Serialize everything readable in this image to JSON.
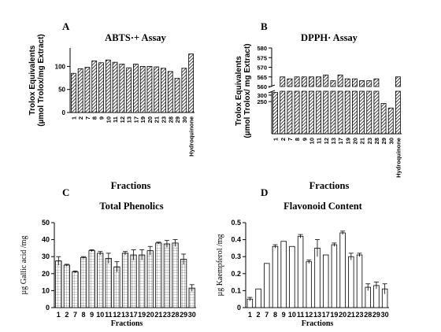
{
  "chart_data": [
    {
      "panel": "A",
      "type": "bar",
      "title": "ABTS·+ Assay",
      "ylabel": "Trolox Equivalents",
      "ylabel2": "(µmol Trolox/mg Extract)",
      "xlabel": "Fractions",
      "categories": [
        "1",
        "2",
        "7",
        "8",
        "9",
        "10",
        "11",
        "12",
        "13",
        "17",
        "19",
        "20",
        "21",
        "23",
        "28",
        "29",
        "30",
        "Hydroquinone"
      ],
      "values": [
        85,
        95,
        98,
        112,
        108,
        114,
        109,
        105,
        97,
        105,
        100,
        100,
        99,
        96,
        89,
        74,
        96,
        127
      ],
      "yticks": [
        0,
        50,
        100
      ],
      "ylim": [
        0,
        140
      ],
      "fill": "hatched"
    },
    {
      "panel": "B",
      "type": "bar",
      "title": "DPPH· Assay",
      "ylabel": "Trolox Equivalents",
      "ylabel2": "(µmol Trolox/ mg Extract)",
      "xlabel": "Fractions",
      "categories": [
        "1",
        "2",
        "7",
        "8",
        "9",
        "10",
        "11",
        "12",
        "13",
        "17",
        "19",
        "20",
        "21",
        "23",
        "28",
        "29",
        "30",
        "Hydroquinone"
      ],
      "values": [
        320,
        565,
        564,
        565,
        565,
        565,
        565,
        566,
        563,
        566,
        564,
        564,
        563,
        563,
        564,
        235,
        200,
        565
      ],
      "yticks": [
        250,
        300,
        560,
        565,
        570,
        575,
        580
      ],
      "axis_break": [
        330,
        560
      ],
      "fill": "hatched"
    },
    {
      "panel": "C",
      "type": "bar",
      "title": "Total Phenolics",
      "ylabel": "µg Gallic acid /mg",
      "xlabel": "Fractions",
      "categories": [
        "1",
        "2",
        "7",
        "8",
        "9",
        "10",
        "11",
        "12",
        "13",
        "17",
        "19",
        "20",
        "21",
        "23",
        "28",
        "29",
        "30"
      ],
      "values": [
        27.5,
        25,
        21,
        29.5,
        33.5,
        32,
        29,
        24,
        32,
        31,
        31,
        33.5,
        38,
        37.5,
        38,
        28.5,
        11.5
      ],
      "errors": [
        2.5,
        0.5,
        0.5,
        0.5,
        0.5,
        1,
        3,
        3,
        1,
        3,
        3,
        2.5,
        0.5,
        2,
        2,
        3,
        2
      ],
      "yticks": [
        0,
        10,
        20,
        30,
        40,
        50
      ],
      "ylim": [
        0,
        50
      ],
      "fill": "grid"
    },
    {
      "panel": "D",
      "type": "bar",
      "title": "Flavonoid Content",
      "ylabel": "µg Kaempferol /mg",
      "xlabel": "Fractions",
      "categories": [
        "1",
        "2",
        "7",
        "8",
        "9",
        "10",
        "11",
        "12",
        "13",
        "17",
        "19",
        "20",
        "21",
        "23",
        "28",
        "29",
        "30"
      ],
      "values": [
        0.05,
        0.11,
        0.26,
        0.36,
        0.39,
        0.36,
        0.42,
        0.27,
        0.35,
        0.31,
        0.37,
        0.44,
        0.3,
        0.31,
        0.12,
        0.13,
        0.11
      ],
      "errors": [
        0.01,
        0,
        0,
        0.01,
        0,
        0,
        0.01,
        0.01,
        0.05,
        0,
        0.01,
        0.01,
        0.02,
        0.01,
        0.02,
        0.02,
        0.03
      ],
      "yticks": [
        0,
        0.1,
        0.2,
        0.3,
        0.4,
        0.5
      ],
      "ylim": [
        0,
        0.5
      ],
      "fill": "white"
    }
  ]
}
